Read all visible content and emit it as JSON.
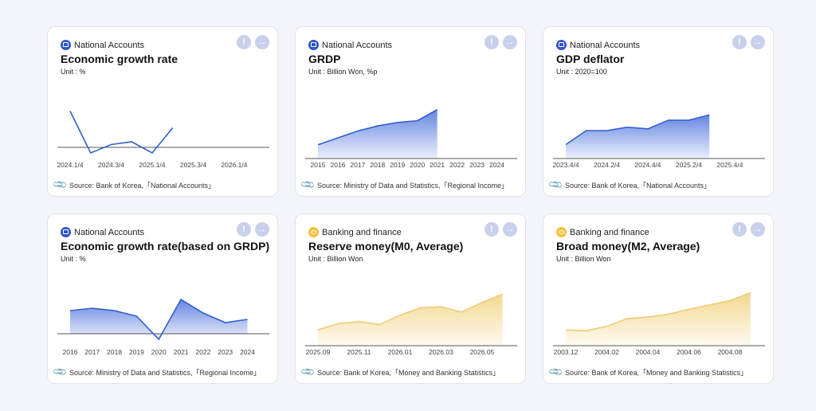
{
  "colors": {
    "blue": "#2f5fcf",
    "blue_fill": "#5d7fe0",
    "gold": "#efcb72",
    "gold_fill": "#f3d68a",
    "axis": "#555"
  },
  "cards": [
    {
      "category": "National Accounts",
      "category_icon": "national-accounts-icon",
      "title": "Economic growth rate",
      "unit": "Unit : %",
      "source": "Source: Bank of Korea,「National Accounts」",
      "chart_data": {
        "type": "line",
        "color": "blue",
        "fill": false,
        "x": [
          "2024.1/4",
          "2024.2/4",
          "2024.3/4",
          "2024.4/4",
          "2025.1/4",
          "2025.2/4",
          "2025.3/4"
        ],
        "y": [
          1.3,
          -0.2,
          0.1,
          0.2,
          -0.2,
          0.7,
          null
        ],
        "xticks": [
          "2024.1/4",
          "2024.3/4",
          "2025.1/4",
          "2025.3/4",
          "2026.1/4"
        ],
        "ylim": [
          -0.4,
          1.6
        ],
        "baseline": 0
      }
    },
    {
      "category": "National Accounts",
      "category_icon": "national-accounts-icon",
      "title": "GRDP",
      "unit": "Unit : Billion Won, %p",
      "source": "Source: Ministry of Data and Statistics,「Regional Income」",
      "chart_data": {
        "type": "area",
        "color": "blue",
        "x": [
          "2015",
          "2016",
          "2017",
          "2018",
          "2019",
          "2020",
          "2021"
        ],
        "y": [
          1660,
          1740,
          1820,
          1880,
          1920,
          1940,
          2070
        ],
        "xticks": [
          "2015",
          "2016",
          "2017",
          "2018",
          "2019",
          "2020",
          "2021",
          "2022",
          "2023",
          "2024"
        ],
        "ylim": [
          1500,
          2150
        ],
        "baseline": 1500
      }
    },
    {
      "category": "National Accounts",
      "category_icon": "national-accounts-icon",
      "title": "GDP deflator",
      "unit": "Unit : 2020=100",
      "source": "Source: Bank of Korea,「National Accounts」",
      "chart_data": {
        "type": "area",
        "color": "blue",
        "x": [
          "2023.4/4",
          "2024.1/4",
          "2024.2/4",
          "2024.3/4",
          "2024.4/4",
          "2025.1/4",
          "2025.2/4",
          "2025.3/4"
        ],
        "y": [
          110.0,
          110.8,
          110.8,
          111.0,
          110.9,
          111.4,
          111.4,
          111.7
        ],
        "xticks": [
          "2023.4/4",
          "2024.2/4",
          "2024.4/4",
          "2025.2/4",
          "2025.4/4"
        ],
        "ylim": [
          109.2,
          112.4
        ],
        "baseline": 109.2
      }
    },
    {
      "category": "National Accounts",
      "category_icon": "national-accounts-icon",
      "title": "Economic growth rate(based on GRDP)",
      "unit": "Unit : %",
      "source": "Source: Ministry of Data and Statistics,「Regional Income」",
      "chart_data": {
        "type": "area",
        "color": "blue",
        "x": [
          "2016",
          "2017",
          "2018",
          "2019",
          "2020",
          "2021",
          "2022",
          "2023",
          "2024"
        ],
        "y": [
          2.9,
          3.2,
          2.9,
          2.2,
          -0.7,
          4.3,
          2.6,
          1.4,
          1.8
        ],
        "xticks": [
          "2016",
          "2017",
          "2018",
          "2019",
          "2020",
          "2021",
          "2022",
          "2023",
          "2024"
        ],
        "ylim": [
          -1.5,
          5.5
        ],
        "baseline": 0
      }
    },
    {
      "category": "Banking and finance",
      "category_icon": "banking-finance-icon",
      "title": "Reserve money(M0, Average)",
      "unit": "Unit : Billion Won",
      "source": "Source: Bank of Korea,「Money and Banking Statistics」",
      "chart_data": {
        "type": "area",
        "color": "gold",
        "x": [
          "2025.09",
          "2025.10",
          "2025.11",
          "2025.12",
          "2026.01",
          "2026.02",
          "2026.03",
          "2026.04",
          "2026.05",
          "2026.06"
        ],
        "y": [
          270000,
          276000,
          278000,
          275000,
          284000,
          291000,
          292000,
          287000,
          296000,
          304000
        ],
        "xticks": [
          "2025.09",
          "2025.11",
          "2026.01",
          "2026.03",
          "2026.05"
        ],
        "ylim": [
          255000,
          308000
        ],
        "baseline": 255000
      }
    },
    {
      "category": "Banking and finance",
      "category_icon": "banking-finance-icon",
      "title": "Broad money(M2, Average)",
      "unit": "Unit : Billion Won",
      "source": "Source: Bank of Korea,「Money and Banking Statistics」",
      "chart_data": {
        "type": "area",
        "color": "gold",
        "x": [
          "2003.12",
          "2004.01",
          "2004.02",
          "2004.03",
          "2004.04",
          "2004.05",
          "2004.06",
          "2004.07",
          "2004.08",
          "2004.09"
        ],
        "y": [
          852000,
          851000,
          857000,
          868000,
          870000,
          874000,
          881000,
          887000,
          893000,
          904000
        ],
        "xticks": [
          "2003.12",
          "2004.02",
          "2004.04",
          "2004.06",
          "2004.08"
        ],
        "ylim": [
          830000,
          908000
        ],
        "baseline": 830000
      }
    }
  ],
  "chart_data": [
    {
      "type": "line",
      "title": "Economic growth rate",
      "x": [
        "2024.1/4",
        "2024.2/4",
        "2024.3/4",
        "2024.4/4",
        "2025.1/4",
        "2025.2/4"
      ],
      "values": [
        1.3,
        -0.2,
        0.1,
        0.2,
        -0.2,
        0.7
      ]
    },
    {
      "type": "area",
      "title": "GRDP",
      "x": [
        "2015",
        "2016",
        "2017",
        "2018",
        "2019",
        "2020",
        "2021"
      ],
      "values": [
        1660,
        1740,
        1820,
        1880,
        1920,
        1940,
        2070
      ]
    },
    {
      "type": "area",
      "title": "GDP deflator",
      "x": [
        "2023.4/4",
        "2024.1/4",
        "2024.2/4",
        "2024.3/4",
        "2024.4/4",
        "2025.1/4",
        "2025.2/4",
        "2025.3/4"
      ],
      "values": [
        110.0,
        110.8,
        110.8,
        111.0,
        110.9,
        111.4,
        111.4,
        111.7
      ]
    },
    {
      "type": "area",
      "title": "Economic growth rate(based on GRDP)",
      "x": [
        "2016",
        "2017",
        "2018",
        "2019",
        "2020",
        "2021",
        "2022",
        "2023",
        "2024"
      ],
      "values": [
        2.9,
        3.2,
        2.9,
        2.2,
        -0.7,
        4.3,
        2.6,
        1.4,
        1.8
      ]
    },
    {
      "type": "area",
      "title": "Reserve money(M0, Average)",
      "x": [
        "2025.09",
        "2025.10",
        "2025.11",
        "2025.12",
        "2026.01",
        "2026.02",
        "2026.03",
        "2026.04",
        "2026.05",
        "2026.06"
      ],
      "values": [
        270000,
        276000,
        278000,
        275000,
        284000,
        291000,
        292000,
        287000,
        296000,
        304000
      ]
    },
    {
      "type": "area",
      "title": "Broad money(M2, Average)",
      "x": [
        "2003.12",
        "2004.01",
        "2004.02",
        "2004.03",
        "2004.04",
        "2004.05",
        "2004.06",
        "2004.07",
        "2004.08",
        "2004.09"
      ],
      "values": [
        852000,
        851000,
        857000,
        868000,
        870000,
        874000,
        881000,
        887000,
        893000,
        904000
      ]
    }
  ],
  "buttons": {
    "info": "!",
    "go": "→"
  }
}
